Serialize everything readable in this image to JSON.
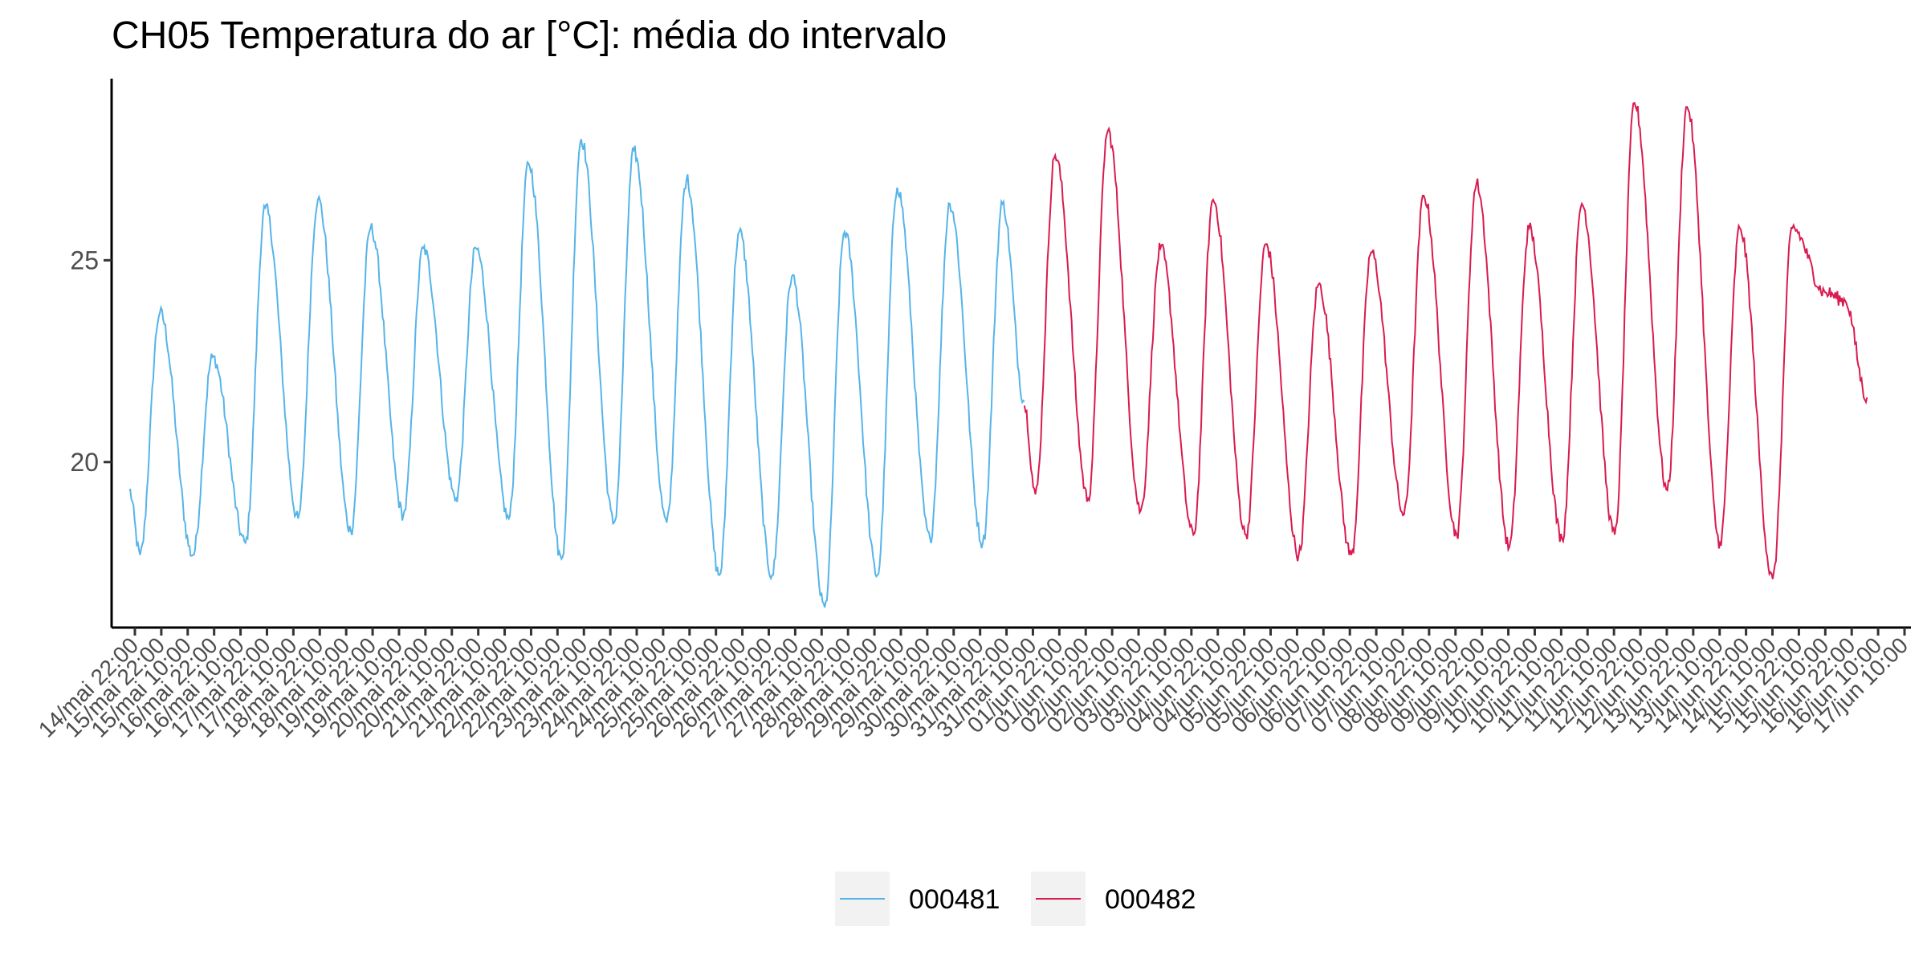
{
  "chart_data": {
    "type": "line",
    "title": "CH05 Temperatura do ar [°C]: média do intervalo",
    "xlabel": "",
    "ylabel": "",
    "grid": false,
    "legend_position": "bottom",
    "ylim": [
      15.9,
      29.5
    ],
    "y_ticks": [
      20,
      25
    ],
    "x_start": "2020-05-14 16:00",
    "x_end": "2020-06-17 20:00",
    "x_tick_labels": [
      "14/mai 22:00",
      "15/mai 22:00",
      "15/mai 10:00",
      "16/mai 22:00",
      "16/mai 10:00",
      "17/mai 22:00",
      "17/mai 10:00",
      "18/mai 22:00",
      "18/mai 10:00",
      "19/mai 22:00",
      "19/mai 10:00",
      "20/mai 22:00",
      "20/mai 10:00",
      "21/mai 22:00",
      "21/mai 10:00",
      "22/mai 22:00",
      "22/mai 10:00",
      "23/mai 22:00",
      "23/mai 10:00",
      "24/mai 22:00",
      "24/mai 10:00",
      "25/mai 22:00",
      "25/mai 10:00",
      "26/mai 22:00",
      "26/mai 10:00",
      "27/mai 22:00",
      "27/mai 10:00",
      "28/mai 22:00",
      "28/mai 10:00",
      "29/mai 22:00",
      "29/mai 10:00",
      "30/mai 22:00",
      "30/mai 10:00",
      "31/mai 22:00",
      "31/mai 10:00",
      "01/jun 22:00",
      "01/jun 10:00",
      "02/jun 22:00",
      "02/jun 10:00",
      "03/jun 22:00",
      "03/jun 10:00",
      "04/jun 22:00",
      "04/jun 10:00",
      "05/jun 22:00",
      "05/jun 10:00",
      "06/jun 22:00",
      "06/jun 10:00",
      "07/jun 22:00",
      "07/jun 10:00",
      "08/jun 22:00",
      "08/jun 10:00",
      "09/jun 22:00",
      "09/jun 10:00",
      "10/jun 22:00",
      "10/jun 10:00",
      "11/jun 22:00",
      "11/jun 10:00",
      "12/jun 22:00",
      "12/jun 10:00",
      "13/jun 22:00",
      "13/jun 10:00",
      "14/jun 22:00",
      "14/jun 10:00",
      "15/jun 22:00",
      "15/jun 10:00",
      "16/jun 22:00",
      "16/jun 10:00",
      "17/jun 10:00"
    ],
    "series": [
      {
        "name": "000481",
        "color": "#56B4E9",
        "x": [
          "2020-05-15 00:00",
          "2020-05-15 05:00",
          "2020-05-15 14:00",
          "2020-05-16 05:00",
          "2020-05-16 14:00",
          "2020-05-17 05:00",
          "2020-05-17 14:00",
          "2020-05-18 05:00",
          "2020-05-18 14:00",
          "2020-05-19 05:00",
          "2020-05-19 14:00",
          "2020-05-20 05:00",
          "2020-05-20 14:00",
          "2020-05-21 05:00",
          "2020-05-21 14:00",
          "2020-05-22 05:00",
          "2020-05-22 14:00",
          "2020-05-23 05:00",
          "2020-05-23 14:00",
          "2020-05-24 05:00",
          "2020-05-24 14:00",
          "2020-05-25 05:00",
          "2020-05-25 14:00",
          "2020-05-26 05:00",
          "2020-05-26 14:00",
          "2020-05-27 05:00",
          "2020-05-27 14:00",
          "2020-05-28 05:00",
          "2020-05-28 14:00",
          "2020-05-29 05:00",
          "2020-05-29 14:00",
          "2020-05-30 05:00",
          "2020-05-30 14:00",
          "2020-05-31 05:00",
          "2020-05-31 14:00",
          "2020-06-01 00:00"
        ],
        "values": [
          19.3,
          17.7,
          23.7,
          17.7,
          22.6,
          18.0,
          26.3,
          18.6,
          26.5,
          18.3,
          25.8,
          18.7,
          25.3,
          19.1,
          25.3,
          18.6,
          27.4,
          17.6,
          28.0,
          18.5,
          27.7,
          18.5,
          27.0,
          17.2,
          25.7,
          17.2,
          24.6,
          16.4,
          25.7,
          17.2,
          26.8,
          18.1,
          26.4,
          18.0,
          26.4,
          21.5
        ]
      },
      {
        "name": "000482",
        "color": "#D81B50",
        "x": [
          "2020-06-01 00:00",
          "2020-06-01 05:00",
          "2020-06-01 14:00",
          "2020-06-02 05:00",
          "2020-06-02 14:00",
          "2020-06-03 05:00",
          "2020-06-03 14:00",
          "2020-06-04 05:00",
          "2020-06-04 14:00",
          "2020-06-05 05:00",
          "2020-06-05 14:00",
          "2020-06-06 05:00",
          "2020-06-06 14:00",
          "2020-06-07 05:00",
          "2020-06-07 14:00",
          "2020-06-08 05:00",
          "2020-06-08 14:00",
          "2020-06-09 05:00",
          "2020-06-09 14:00",
          "2020-06-10 05:00",
          "2020-06-10 14:00",
          "2020-06-11 05:00",
          "2020-06-11 14:00",
          "2020-06-12 05:00",
          "2020-06-12 14:00",
          "2020-06-13 05:00",
          "2020-06-13 14:00",
          "2020-06-14 05:00",
          "2020-06-14 14:00",
          "2020-06-15 05:00",
          "2020-06-15 14:00",
          "2020-06-16 05:00",
          "2020-06-16 14:00",
          "2020-06-17 00:00"
        ],
        "values": [
          21.4,
          19.2,
          27.6,
          19.1,
          28.2,
          18.8,
          25.3,
          18.2,
          26.5,
          18.2,
          25.4,
          17.7,
          24.4,
          17.7,
          25.2,
          18.7,
          26.6,
          18.2,
          26.9,
          17.9,
          25.8,
          18.1,
          26.4,
          18.2,
          28.9,
          19.3,
          28.8,
          18.0,
          25.8,
          17.1,
          25.8,
          24.2,
          24.0,
          21.6
        ]
      }
    ]
  }
}
